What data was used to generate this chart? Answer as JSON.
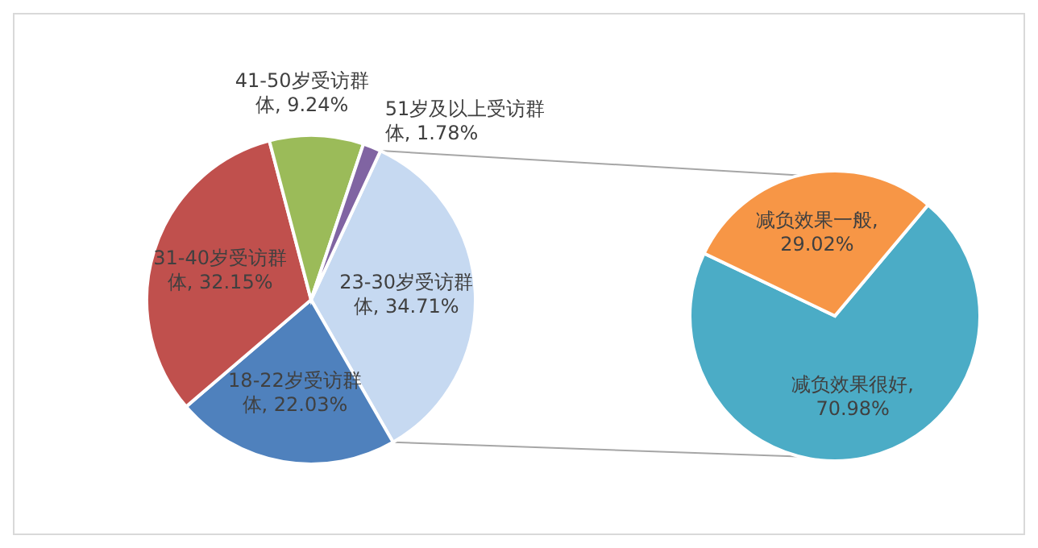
{
  "chart_data": [
    {
      "type": "pie",
      "categories": [
        "23-30岁受访群体",
        "18-22岁受访群体",
        "31-40岁受访群体",
        "41-50岁受访群体",
        "51岁及以上受访群体"
      ],
      "values": [
        34.71,
        22.03,
        32.15,
        9.24,
        1.78
      ],
      "colors": [
        "#c6d9f1",
        "#4f81bd",
        "#c0504d",
        "#9bbb59",
        "#8064a2"
      ],
      "value_labels": [
        ", 34.71%",
        ", 22.03%",
        ", 32.15%",
        ", 9.24%",
        ", 1.78%"
      ]
    },
    {
      "type": "pie",
      "categories": [
        "减负效果很好",
        "减负效果一般"
      ],
      "values": [
        70.98,
        29.02
      ],
      "colors": [
        "#4bacc6",
        "#f79646"
      ],
      "value_labels": [
        ", 70.98%",
        ", 29.02%"
      ]
    }
  ]
}
